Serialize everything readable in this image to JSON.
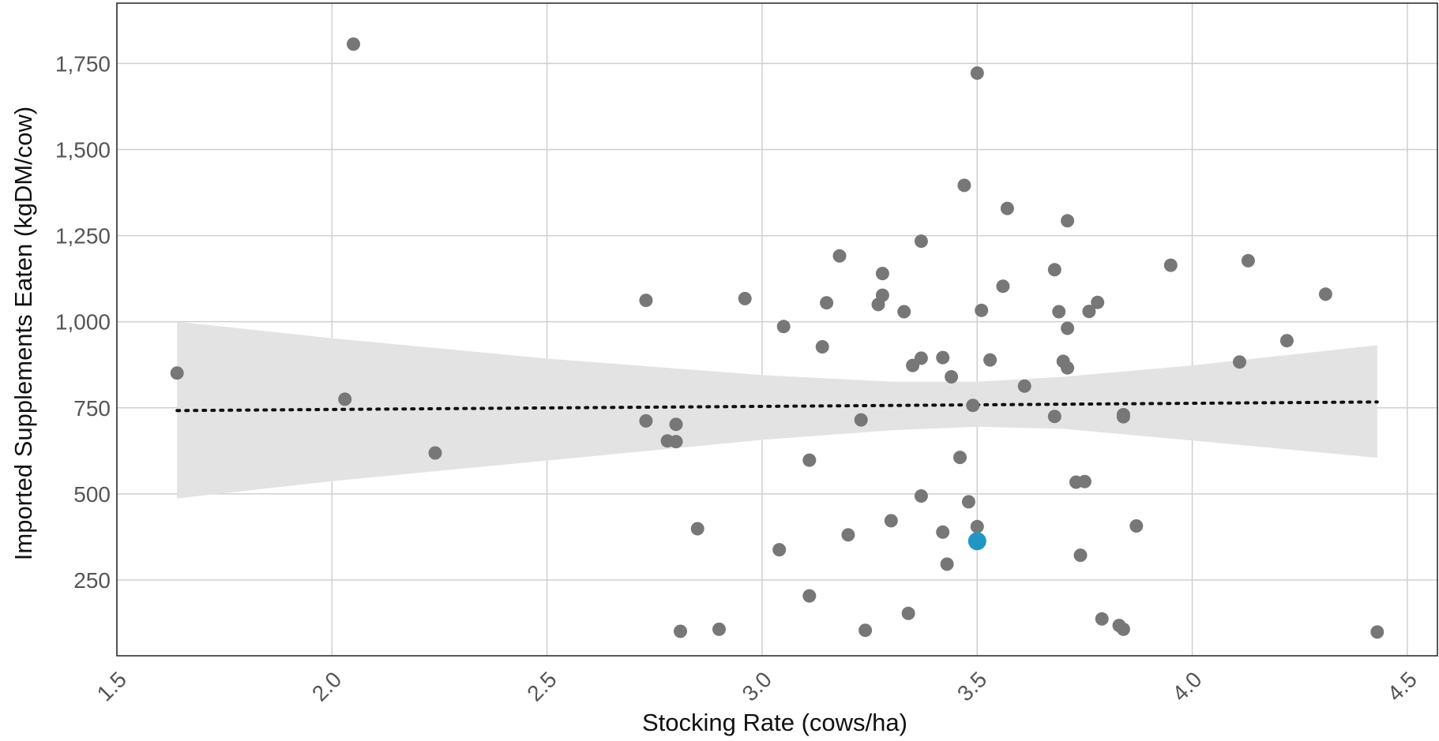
{
  "chart_data": {
    "type": "scatter",
    "xlabel": "Stocking Rate (cows/ha)",
    "ylabel": "Imported Supplements Eaten  (kgDM/cow)",
    "xlim": [
      1.5,
      4.57
    ],
    "ylim": [
      30,
      1925
    ],
    "x_ticks": [
      1.5,
      2.0,
      2.5,
      3.0,
      3.5,
      4.0,
      4.5
    ],
    "x_tick_labels": [
      "1.5",
      "2.0",
      "2.5",
      "3.0",
      "3.5",
      "4.0",
      "4.5"
    ],
    "y_ticks": [
      250,
      500,
      750,
      1000,
      1250,
      1500,
      1750
    ],
    "y_tick_labels": [
      "250",
      "500",
      "750",
      "1,000",
      "1,250",
      "1,500",
      "1,750"
    ],
    "grid": true,
    "colors": {
      "points": "#777777",
      "highlight": "#2196c4",
      "trend": "#111111",
      "band": "#e3e3e3",
      "grid": "#cfcfcf",
      "frame": "#222222"
    },
    "points": [
      [
        1.64,
        851
      ],
      [
        2.03,
        775
      ],
      [
        2.05,
        1806
      ],
      [
        2.24,
        619
      ],
      [
        2.73,
        1062
      ],
      [
        2.73,
        712
      ],
      [
        2.78,
        654
      ],
      [
        2.8,
        702
      ],
      [
        2.8,
        652
      ],
      [
        2.81,
        101
      ],
      [
        2.85,
        399
      ],
      [
        2.9,
        107
      ],
      [
        2.96,
        1067
      ],
      [
        3.04,
        338
      ],
      [
        3.05,
        986
      ],
      [
        3.11,
        204
      ],
      [
        3.11,
        598
      ],
      [
        3.14,
        927
      ],
      [
        3.15,
        1055
      ],
      [
        3.18,
        1191
      ],
      [
        3.2,
        381
      ],
      [
        3.23,
        715
      ],
      [
        3.24,
        104
      ],
      [
        3.27,
        1050
      ],
      [
        3.28,
        1140
      ],
      [
        3.28,
        1077
      ],
      [
        3.3,
        422
      ],
      [
        3.33,
        1029
      ],
      [
        3.34,
        153
      ],
      [
        3.35,
        873
      ],
      [
        3.37,
        894
      ],
      [
        3.37,
        494
      ],
      [
        3.37,
        1234
      ],
      [
        3.42,
        896
      ],
      [
        3.42,
        389
      ],
      [
        3.43,
        296
      ],
      [
        3.44,
        840
      ],
      [
        3.46,
        606
      ],
      [
        3.47,
        1396
      ],
      [
        3.48,
        477
      ],
      [
        3.49,
        757
      ],
      [
        3.5,
        1722
      ],
      [
        3.5,
        405
      ],
      [
        3.51,
        1033
      ],
      [
        3.53,
        889
      ],
      [
        3.56,
        1103
      ],
      [
        3.57,
        1329
      ],
      [
        3.61,
        813
      ],
      [
        3.68,
        1151
      ],
      [
        3.68,
        725
      ],
      [
        3.69,
        1029
      ],
      [
        3.7,
        885
      ],
      [
        3.71,
        866
      ],
      [
        3.71,
        981
      ],
      [
        3.71,
        1293
      ],
      [
        3.73,
        534
      ],
      [
        3.74,
        322
      ],
      [
        3.75,
        536
      ],
      [
        3.76,
        1030
      ],
      [
        3.78,
        1056
      ],
      [
        3.79,
        137
      ],
      [
        3.83,
        118
      ],
      [
        3.84,
        724
      ],
      [
        3.84,
        730
      ],
      [
        3.84,
        107
      ],
      [
        3.87,
        407
      ],
      [
        3.95,
        1164
      ],
      [
        4.11,
        883
      ],
      [
        4.13,
        1177
      ],
      [
        4.22,
        945
      ],
      [
        4.31,
        1080
      ],
      [
        4.43,
        99
      ]
    ],
    "highlight_point": [
      3.5,
      363
    ],
    "trend_line": {
      "x": [
        1.64,
        4.43
      ],
      "y": [
        742,
        767
      ]
    },
    "confidence_band": {
      "x": [
        1.64,
        2.0,
        2.5,
        3.0,
        3.3,
        3.5,
        3.7,
        4.0,
        4.43
      ],
      "upper": [
        1000,
        952,
        893,
        845,
        826,
        826,
        840,
        873,
        932
      ],
      "lower": [
        487,
        537,
        597,
        657,
        685,
        695,
        689,
        655,
        605
      ]
    }
  }
}
